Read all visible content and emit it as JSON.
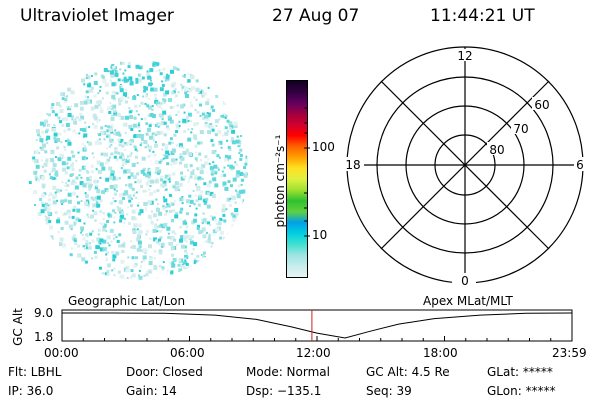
{
  "header": {
    "title": "Ultraviolet Imager",
    "date": "27 Aug 07",
    "time": "11:44:21 UT"
  },
  "colorbar": {
    "unit_label": "photon cm⁻²s⁻¹",
    "ticks": [
      "100",
      "10"
    ],
    "colors": [
      "#e8f4f4",
      "#c8ecec",
      "#9ee4e4",
      "#40e0d0",
      "#00d0e0",
      "#00a0e8",
      "#60d040",
      "#30c030",
      "#a0e030",
      "#e0f040",
      "#ffe020",
      "#ffa000",
      "#ff6000",
      "#ff0000",
      "#d00030",
      "#a00040",
      "#600060",
      "#300040",
      "#100020"
    ]
  },
  "polar": {
    "mlt_labels": {
      "top": "12",
      "right": "6",
      "bottom": "0",
      "left": "18"
    },
    "lat_labels": [
      "60",
      "70",
      "80"
    ]
  },
  "altitude_panel": {
    "axis_label": "GC Alt",
    "y_ticks": [
      "9.0",
      "1.8"
    ],
    "left_caption": "Geographic Lat/Lon",
    "right_caption": "Apex MLat/MLT",
    "x_ticks": [
      "00:00",
      "06:00",
      "12:00",
      "18:00",
      "23:59"
    ],
    "current_time_fraction": 0.49,
    "curve": [
      {
        "t": 0.0,
        "alt": 9.0
      },
      {
        "t": 0.1,
        "alt": 9.0
      },
      {
        "t": 0.2,
        "alt": 8.9
      },
      {
        "t": 0.3,
        "alt": 8.4
      },
      {
        "t": 0.38,
        "alt": 7.2
      },
      {
        "t": 0.45,
        "alt": 5.0
      },
      {
        "t": 0.5,
        "alt": 3.2
      },
      {
        "t": 0.555,
        "alt": 1.8
      },
      {
        "t": 0.6,
        "alt": 3.6
      },
      {
        "t": 0.66,
        "alt": 5.8
      },
      {
        "t": 0.73,
        "alt": 7.4
      },
      {
        "t": 0.82,
        "alt": 8.4
      },
      {
        "t": 0.91,
        "alt": 8.9
      },
      {
        "t": 1.0,
        "alt": 9.0
      }
    ]
  },
  "footer": {
    "row1": {
      "filter": "Flt: LBHL",
      "door": "Door: Closed",
      "mode": "Mode: Normal",
      "gc_alt": "GC Alt: 4.5 Re",
      "glat": "GLat: *****"
    },
    "row2": {
      "ip": "IP: 36.0",
      "gain": "Gain: 14",
      "dsp": "Dsp: −135.1",
      "seq": "Seq: 39",
      "glon": "GLon: *****"
    }
  }
}
